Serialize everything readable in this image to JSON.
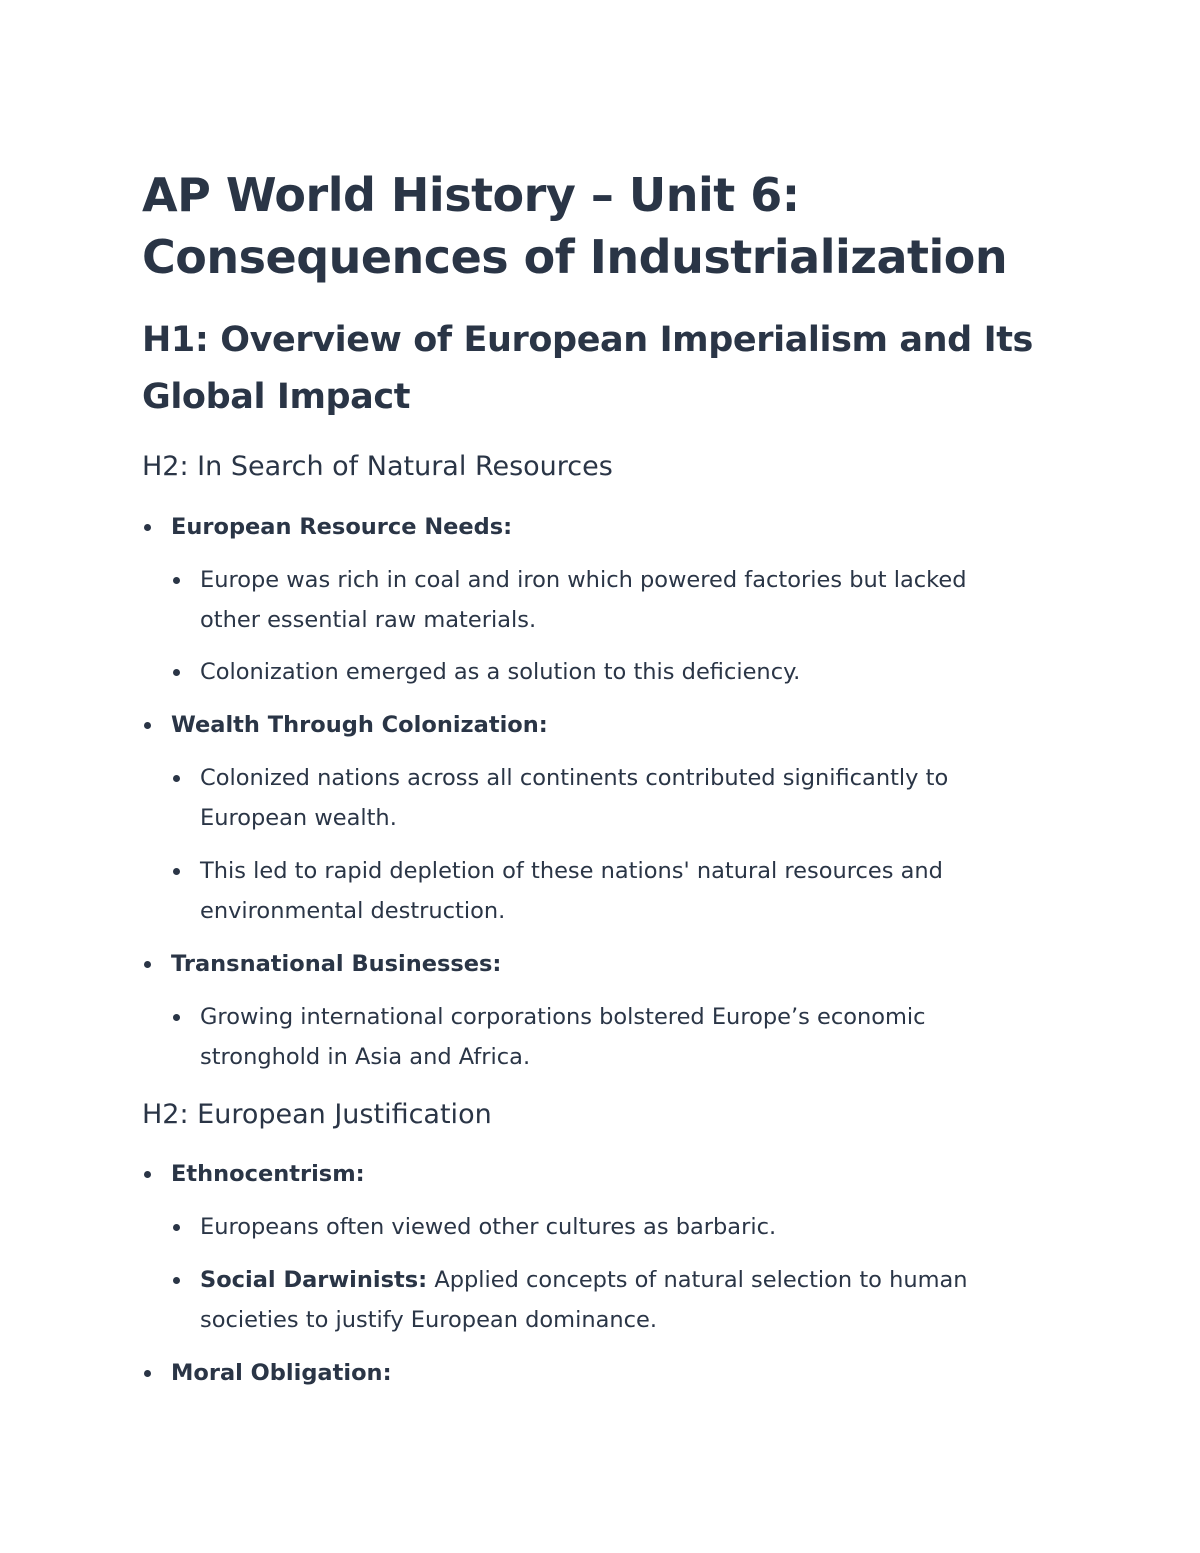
{
  "title": {
    "line1": "AP World History – Unit 6:",
    "line2": "Consequences of Industrialization"
  },
  "h1": {
    "line1": "H1: Overview of European Imperialism and Its",
    "line2": "Global Impact"
  },
  "sections": [
    {
      "heading": "H2: In Search of Natural Resources",
      "items": [
        {
          "label": "European Resource Needs:",
          "subitems": [
            {
              "line1": "Europe was rich in coal and iron which powered factories but lacked",
              "line2": "other essential raw materials."
            },
            {
              "line1": "Colonization emerged as a solution to this deficiency."
            }
          ]
        },
        {
          "label": "Wealth Through Colonization:",
          "subitems": [
            {
              "line1": "Colonized nations across all continents contributed significantly to",
              "line2": "European wealth."
            },
            {
              "line1": "This led to rapid depletion of these nations' natural resources and",
              "line2": "environmental destruction."
            }
          ]
        },
        {
          "label": "Transnational Businesses:",
          "subitems": [
            {
              "line1": "Growing international corporations bolstered Europe’s economic",
              "line2": "stronghold in Asia and Africa."
            }
          ]
        }
      ]
    },
    {
      "heading": "H2: European Justification",
      "items": [
        {
          "label": "Ethnocentrism:",
          "subitems": [
            {
              "line1": "Europeans often viewed other cultures as barbaric."
            },
            {
              "bold": "Social Darwinists:",
              "line1": " Applied concepts of natural selection to human",
              "line2": "societies to justify European dominance."
            }
          ]
        },
        {
          "label": "Moral Obligation:"
        }
      ]
    }
  ]
}
